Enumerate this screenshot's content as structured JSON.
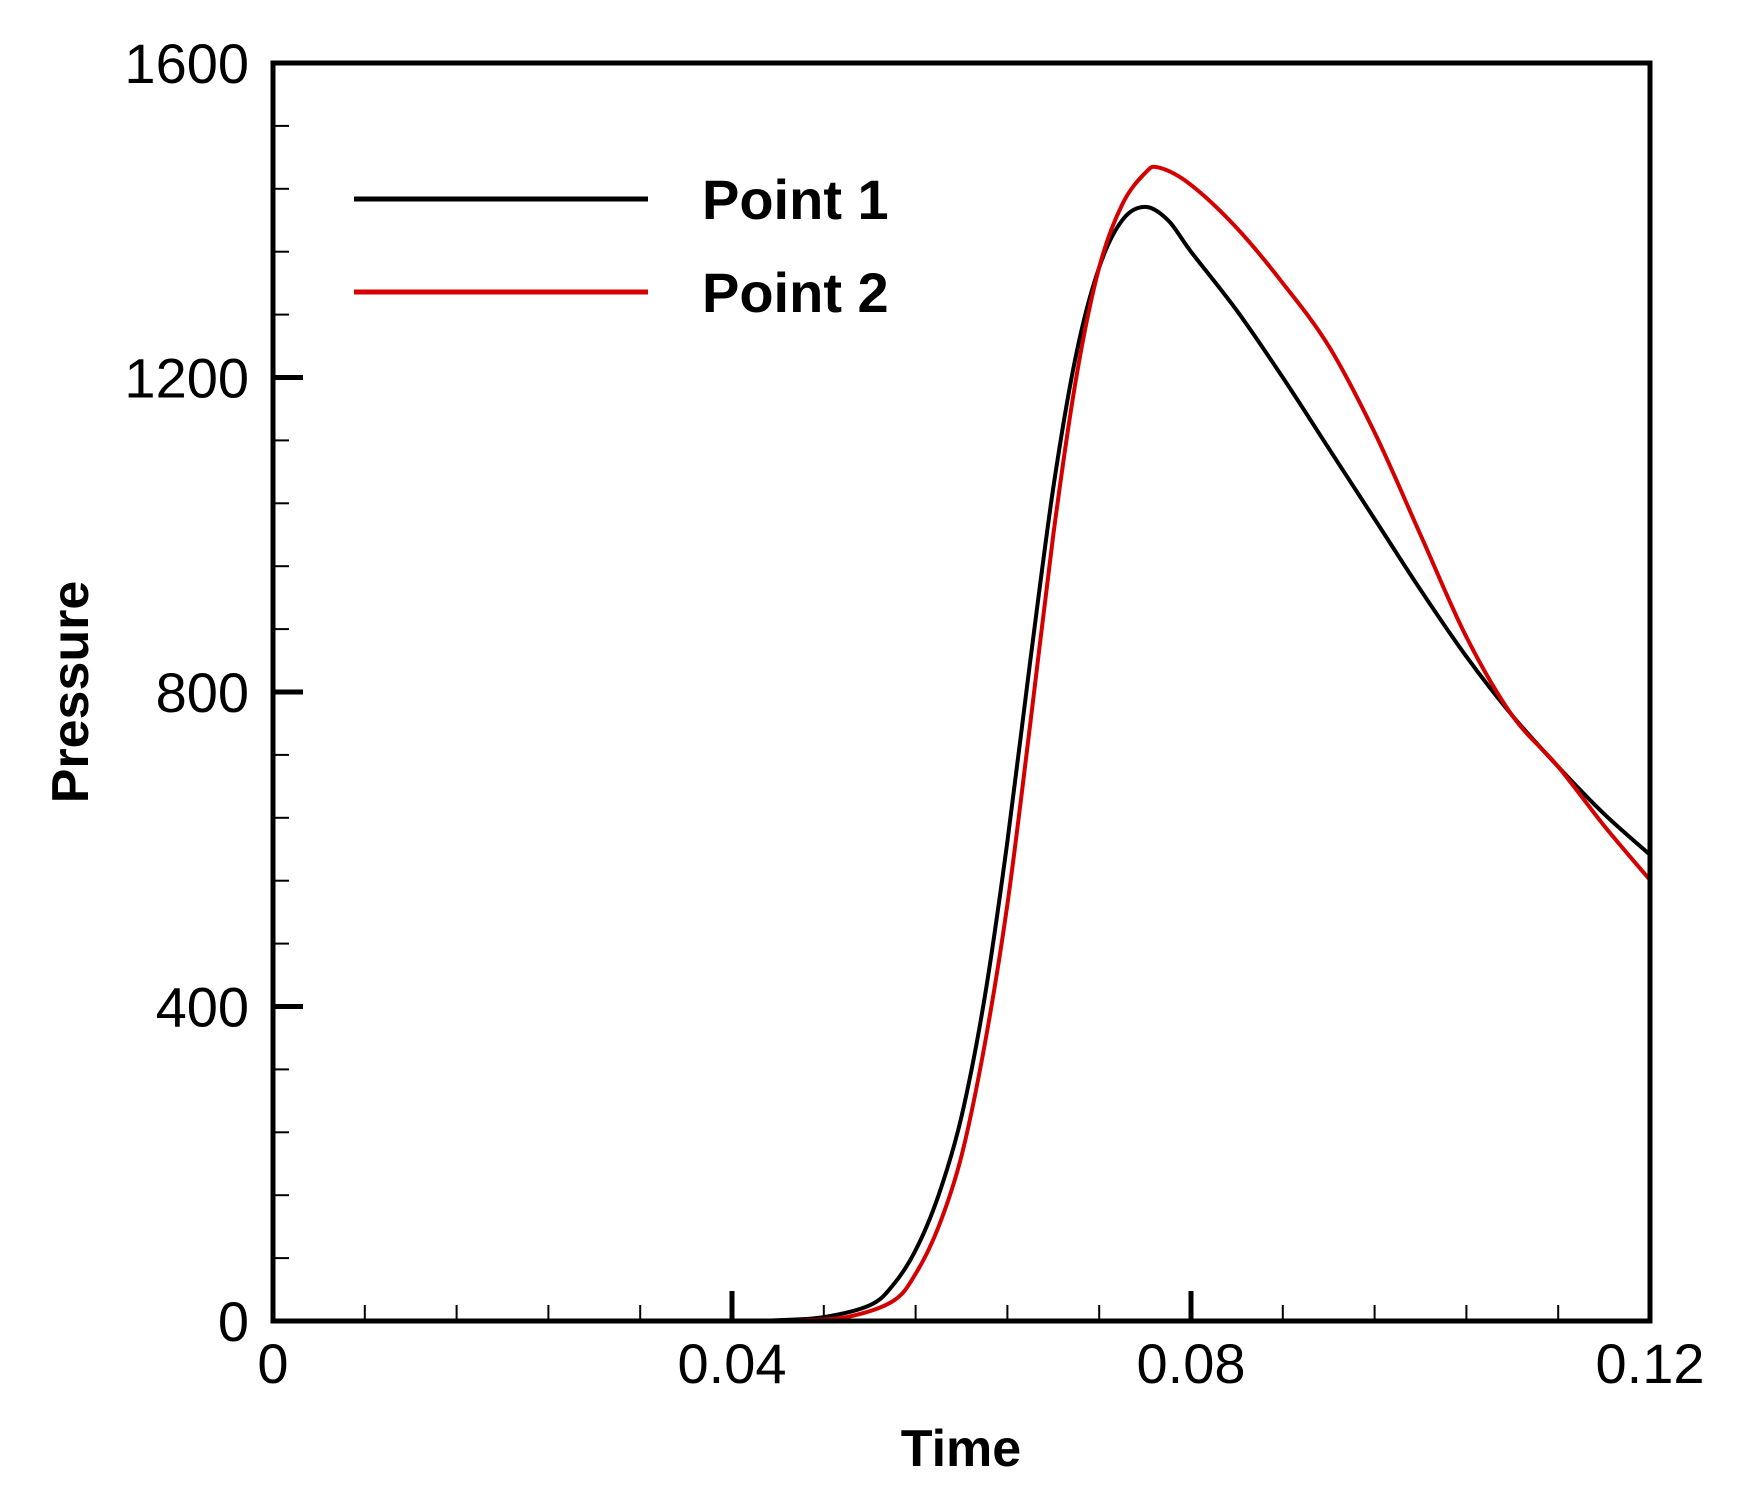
{
  "chart_data": {
    "type": "line",
    "title": "",
    "xlabel": "Time",
    "ylabel": "Pressure",
    "xlim": [
      0,
      0.12
    ],
    "ylim": [
      0,
      1600
    ],
    "xticks": [
      0,
      0.04,
      0.08,
      0.12
    ],
    "xtick_labels": [
      "0",
      "0.04",
      "0.08",
      "0.12"
    ],
    "yticks": [
      0,
      400,
      800,
      1200,
      1600
    ],
    "ytick_labels": [
      "0",
      "400",
      "800",
      "1200",
      "1600"
    ],
    "x_minor_step": 0.008,
    "y_minor_step": 80,
    "grid": false,
    "legend_position": "upper left",
    "series": [
      {
        "name": "Point 1",
        "color": "#000000",
        "x": [
          0.04,
          0.044,
          0.048,
          0.052,
          0.054,
          0.056,
          0.058,
          0.06,
          0.062,
          0.064,
          0.066,
          0.068,
          0.07,
          0.072,
          0.074,
          0.076,
          0.078,
          0.08,
          0.084,
          0.088,
          0.092,
          0.096,
          0.1,
          0.104,
          0.108,
          0.112,
          0.116,
          0.12
        ],
        "y": [
          0,
          1,
          5,
          20,
          45,
          90,
          160,
          260,
          410,
          610,
          840,
          1060,
          1230,
          1340,
          1400,
          1417,
          1400,
          1360,
          1285,
          1200,
          1110,
          1020,
          930,
          845,
          770,
          705,
          645,
          593
        ]
      },
      {
        "name": "Point 2",
        "color": "#d40000",
        "x": [
          0.042,
          0.046,
          0.05,
          0.054,
          0.056,
          0.058,
          0.06,
          0.062,
          0.064,
          0.066,
          0.068,
          0.07,
          0.072,
          0.074,
          0.076,
          0.0772,
          0.08,
          0.084,
          0.088,
          0.092,
          0.096,
          0.1,
          0.104,
          0.108,
          0.112,
          0.116,
          0.12
        ],
        "y": [
          0,
          1,
          5,
          25,
          60,
          120,
          210,
          350,
          530,
          760,
          1000,
          1200,
          1340,
          1420,
          1460,
          1467,
          1445,
          1390,
          1320,
          1240,
          1130,
          1000,
          870,
          770,
          705,
          630,
          561
        ]
      }
    ]
  },
  "legend": {
    "items": [
      {
        "label": "Point 1",
        "color": "#000000"
      },
      {
        "label": "Point 2",
        "color": "#d40000"
      }
    ]
  },
  "axes": {
    "x_title": "Time",
    "y_title": "Pressure"
  }
}
